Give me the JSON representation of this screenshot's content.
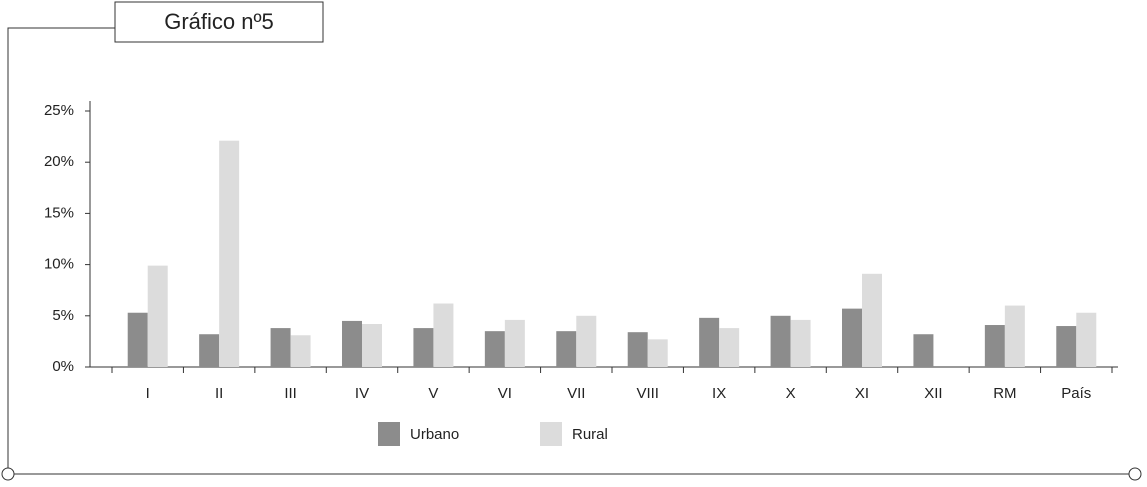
{
  "chart_data": {
    "type": "bar",
    "title": "Gráfico nº5",
    "categories": [
      "I",
      "II",
      "III",
      "IV",
      "V",
      "VI",
      "VII",
      "VIII",
      "IX",
      "X",
      "XI",
      "XII",
      "RM",
      "País"
    ],
    "series": [
      {
        "name": "Urbano",
        "color": "#8c8c8c",
        "values": [
          5.3,
          3.2,
          3.8,
          4.5,
          3.8,
          3.5,
          3.5,
          3.4,
          4.8,
          5.0,
          5.7,
          3.2,
          4.1,
          4.0
        ]
      },
      {
        "name": "Rural",
        "color": "#dcdcdc",
        "values": [
          9.9,
          22.1,
          3.1,
          4.2,
          6.2,
          4.6,
          5.0,
          2.7,
          3.8,
          4.6,
          9.1,
          null,
          6.0,
          5.3
        ]
      }
    ],
    "ylim": [
      0,
      25
    ],
    "yticks": [
      {
        "value": 0,
        "label": "0%"
      },
      {
        "value": 5,
        "label": "5%"
      },
      {
        "value": 10,
        "label": "10%"
      },
      {
        "value": 15,
        "label": "15%"
      },
      {
        "value": 20,
        "label": "20%"
      },
      {
        "value": 25,
        "label": "25%"
      }
    ],
    "legend": "bottom"
  }
}
